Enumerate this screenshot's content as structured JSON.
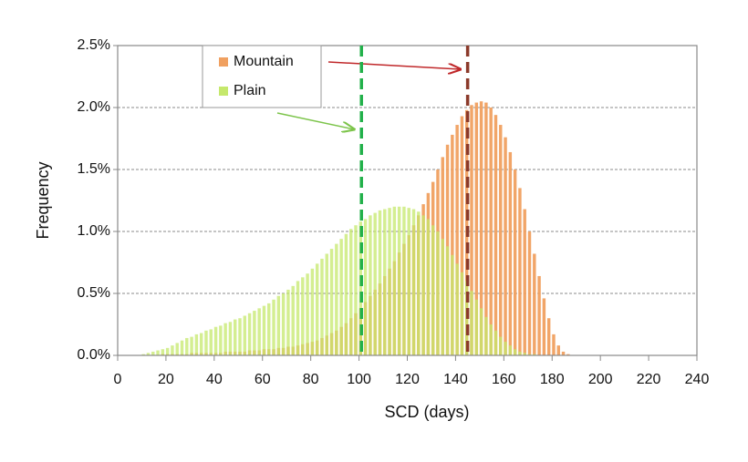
{
  "chart_data": {
    "type": "histogram",
    "x_label": "SCD (days)",
    "y_label": "Frequency",
    "bins": [
      10,
      12,
      14,
      16,
      18,
      20,
      22,
      24,
      26,
      28,
      30,
      32,
      34,
      36,
      38,
      40,
      42,
      44,
      46,
      48,
      50,
      52,
      54,
      56,
      58,
      60,
      62,
      64,
      66,
      68,
      70,
      72,
      74,
      76,
      78,
      80,
      82,
      84,
      86,
      88,
      90,
      92,
      94,
      96,
      98,
      100,
      102,
      104,
      106,
      108,
      110,
      112,
      114,
      116,
      118,
      120,
      122,
      124,
      126,
      128,
      130,
      132,
      134,
      136,
      138,
      140,
      142,
      144,
      146,
      148,
      150,
      152,
      154,
      156,
      158,
      160,
      162,
      164,
      166,
      168,
      170,
      172,
      174,
      176,
      178,
      180,
      182,
      184,
      186,
      188,
      190
    ],
    "series": [
      {
        "name": "Mountain",
        "color": "#f0a060",
        "values": [
          0,
          0,
          0,
          0,
          0.01,
          0.01,
          0.01,
          0.01,
          0.01,
          0.01,
          0.02,
          0.02,
          0.02,
          0.02,
          0.02,
          0.02,
          0.02,
          0.03,
          0.03,
          0.03,
          0.03,
          0.03,
          0.04,
          0.04,
          0.04,
          0.05,
          0.05,
          0.05,
          0.06,
          0.06,
          0.07,
          0.07,
          0.08,
          0.09,
          0.1,
          0.11,
          0.12,
          0.14,
          0.16,
          0.18,
          0.2,
          0.23,
          0.26,
          0.3,
          0.34,
          0.38,
          0.43,
          0.48,
          0.53,
          0.58,
          0.64,
          0.7,
          0.76,
          0.83,
          0.9,
          0.97,
          1.05,
          1.13,
          1.22,
          1.31,
          1.4,
          1.5,
          1.6,
          1.7,
          1.78,
          1.86,
          1.93,
          1.98,
          2.02,
          2.04,
          2.05,
          2.04,
          2.0,
          1.94,
          1.86,
          1.76,
          1.64,
          1.5,
          1.35,
          1.18,
          1.0,
          0.82,
          0.64,
          0.46,
          0.3,
          0.17,
          0.08,
          0.03,
          0.01,
          0
        ]
      },
      {
        "name": "Plain",
        "color": "#c5e86c",
        "values": [
          0.01,
          0.02,
          0.03,
          0.04,
          0.05,
          0.06,
          0.08,
          0.1,
          0.12,
          0.14,
          0.15,
          0.17,
          0.18,
          0.2,
          0.21,
          0.23,
          0.24,
          0.26,
          0.27,
          0.29,
          0.3,
          0.32,
          0.34,
          0.36,
          0.38,
          0.4,
          0.42,
          0.45,
          0.48,
          0.5,
          0.53,
          0.56,
          0.6,
          0.63,
          0.66,
          0.7,
          0.74,
          0.78,
          0.82,
          0.86,
          0.9,
          0.94,
          0.98,
          1.02,
          1.05,
          1.08,
          1.1,
          1.13,
          1.15,
          1.17,
          1.18,
          1.19,
          1.2,
          1.2,
          1.2,
          1.19,
          1.18,
          1.16,
          1.13,
          1.1,
          1.05,
          1.0,
          0.94,
          0.88,
          0.81,
          0.74,
          0.67,
          0.6,
          0.52,
          0.45,
          0.38,
          0.31,
          0.25,
          0.2,
          0.15,
          0.11,
          0.08,
          0.05,
          0.03,
          0.02,
          0.01,
          0.01,
          0,
          0,
          0,
          0,
          0,
          0,
          0,
          0
        ]
      }
    ],
    "reference_lines": [
      {
        "x": 145,
        "color": "#8b3a2a"
      },
      {
        "x": 101,
        "color": "#22b04a"
      }
    ],
    "xlim": [
      0,
      240
    ],
    "xticks": [
      0,
      20,
      40,
      60,
      80,
      100,
      120,
      140,
      160,
      180,
      200,
      220,
      240
    ],
    "ylim": [
      0,
      2.5
    ],
    "yticks": [
      {
        "value": 0,
        "label": "0.0%"
      },
      {
        "value": 0.5,
        "label": "0.5%"
      },
      {
        "value": 1,
        "label": "1.0%"
      },
      {
        "value": 1.5,
        "label": "1.5%"
      },
      {
        "value": 2,
        "label": "2.0%"
      },
      {
        "value": 2.5,
        "label": "2.5%"
      }
    ],
    "grid": true,
    "legend": "upper left"
  }
}
